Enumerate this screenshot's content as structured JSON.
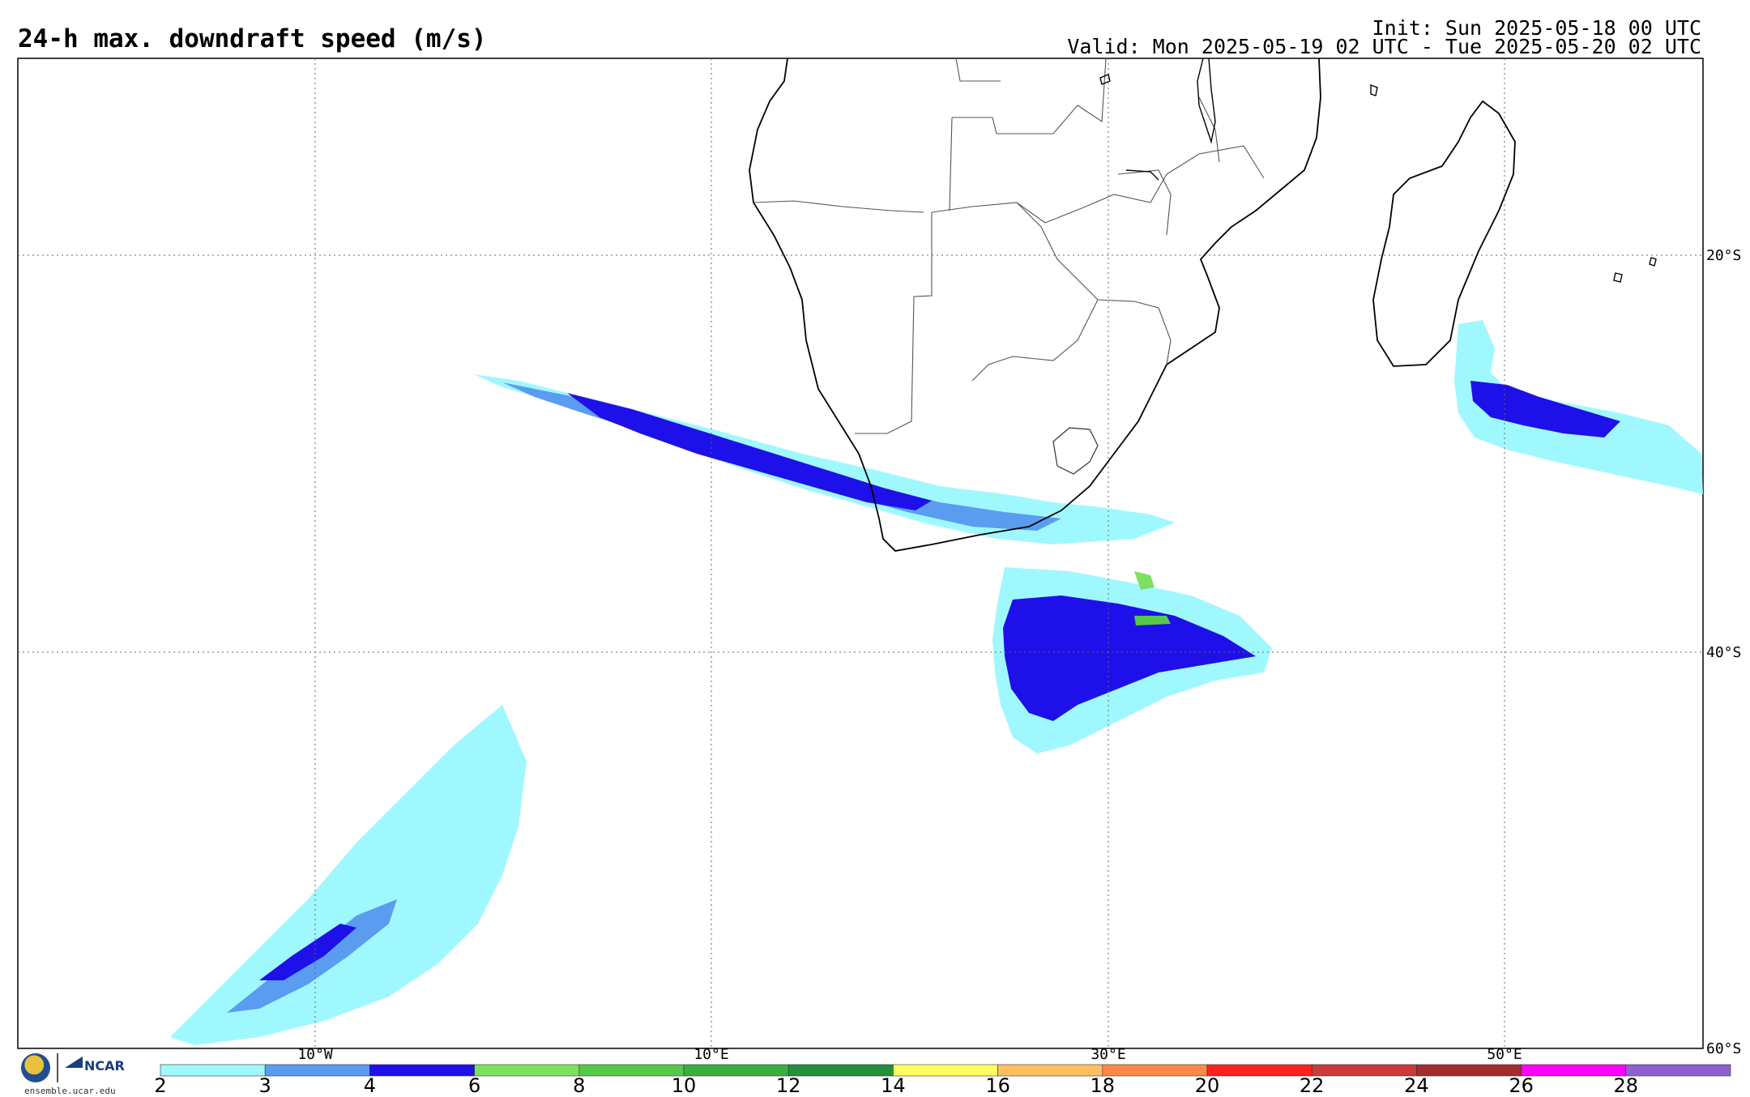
{
  "header": {
    "title": "24-h max. downdraft speed (m/s)",
    "init": "Init: Sun 2025-05-18 00 UTC",
    "valid": "Valid: Mon 2025-05-19 02 UTC - Tue 2025-05-20 02 UTC"
  },
  "map": {
    "lat_labels": [
      "20°S",
      "40°S",
      "60°S"
    ],
    "lon_labels": [
      "10°W",
      "10°E",
      "30°E",
      "50°E"
    ]
  },
  "colorbar": {
    "labels": [
      "2",
      "3",
      "4",
      "6",
      "8",
      "10",
      "12",
      "14",
      "16",
      "18",
      "20",
      "22",
      "24",
      "26",
      "28"
    ],
    "colors": [
      "#a0f8ff",
      "#5a9cf0",
      "#1e10e8",
      "#7ee060",
      "#56c84a",
      "#3aae3e",
      "#24903a",
      "#ffff60",
      "#ffc060",
      "#ff8848",
      "#ff2020",
      "#cc3a3a",
      "#a02e2e",
      "#ff00ff",
      "#9060d0"
    ]
  },
  "logos": {
    "nsf": "NSF",
    "ncar": "NCAR",
    "url": "ensemble.ucar.edu"
  }
}
